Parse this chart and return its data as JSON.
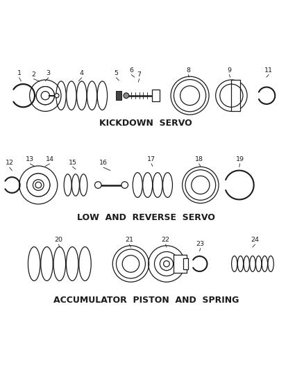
{
  "bg_color": "#ffffff",
  "line_color": "#1a1a1a",
  "section1_label": "KICKDOWN  SERVO",
  "section2_label": "LOW  AND  REVERSE  SERVO",
  "section3_label": "ACCUMULATOR  PISTON  AND  SPRING"
}
